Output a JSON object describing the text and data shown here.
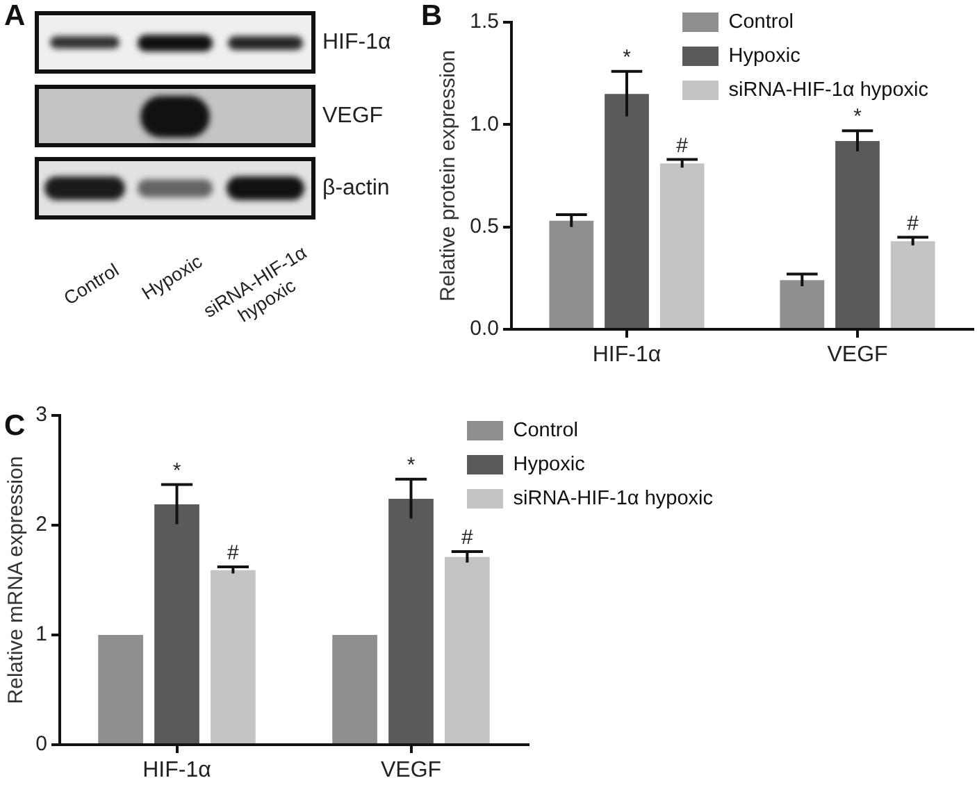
{
  "chart_data": [
    {
      "type": "other",
      "title": "A",
      "categories": [
        "Control",
        "Hypoxic",
        "siRNA-HIF-1α hypoxic"
      ],
      "y_categories": [
        "HIF-1α",
        "VEGF",
        "β-actin"
      ]
    },
    {
      "type": "bar",
      "title": "B",
      "categories": [
        "HIF-1α",
        "VEGF"
      ],
      "ylabel": "Relative protein expression",
      "ylim": [
        0,
        1.5
      ],
      "yticks": [
        {
          "value": 0,
          "label": "0.0"
        },
        0.5,
        {
          "value": 1,
          "label": "1.0"
        },
        1.5
      ],
      "legend": "top right",
      "series": [
        {
          "name": "Control",
          "color": "#8f8f8f",
          "values": [
            0.53,
            0.24
          ],
          "errors": [
            0.03,
            0.03
          ]
        },
        {
          "name": "Hypoxic",
          "color": "#5a5a5a",
          "values": [
            1.15,
            0.92
          ],
          "errors": [
            0.11,
            0.05
          ],
          "value_labels": [
            "*",
            "*"
          ]
        },
        {
          "name": "siRNA-HIF-1α hypoxic",
          "color": "#c4c4c4",
          "values": [
            0.81,
            0.43
          ],
          "errors": [
            0.02,
            0.02
          ],
          "value_labels": [
            "#",
            "#"
          ]
        }
      ]
    },
    {
      "type": "bar",
      "title": "C",
      "categories": [
        "HIF-1α",
        "VEGF"
      ],
      "ylabel": "Relative mRNA expression",
      "ylim": [
        0,
        3
      ],
      "yticks": [
        0,
        1,
        2,
        3
      ],
      "legend": "top right",
      "series": [
        {
          "name": "Control",
          "color": "#8f8f8f",
          "values": [
            1,
            1
          ]
        },
        {
          "name": "Hypoxic",
          "color": "#5a5a5a",
          "values": [
            2.19,
            2.24
          ],
          "errors": [
            0.18,
            0.18
          ],
          "value_labels": [
            "*",
            "*"
          ]
        },
        {
          "name": "siRNA-HIF-1α hypoxic",
          "color": "#c4c4c4",
          "values": [
            1.59,
            1.71
          ],
          "errors": [
            0.03,
            0.05
          ],
          "value_labels": [
            "#",
            "#"
          ]
        }
      ]
    }
  ]
}
